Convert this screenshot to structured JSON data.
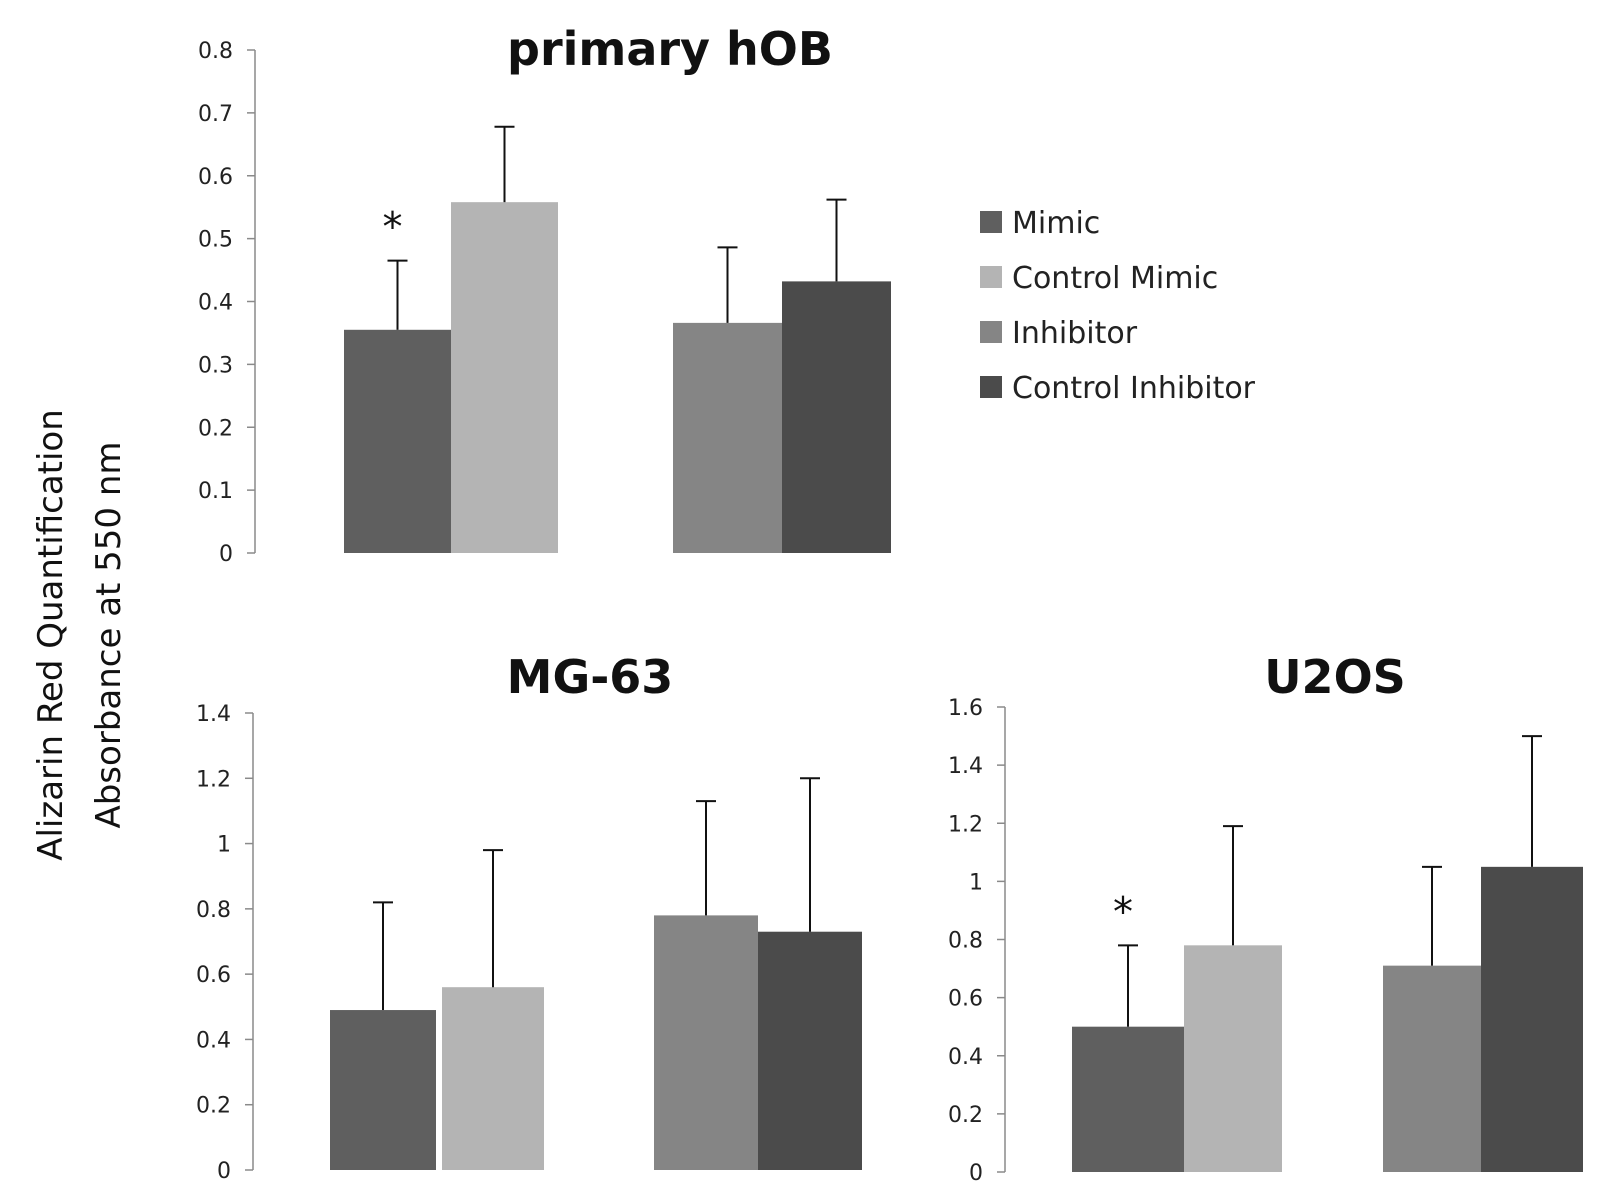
{
  "ylabel_line1": "Alizarin Red Quantification",
  "ylabel_line2": "Absorbance at 550 nm",
  "colors": {
    "Mimic": "#5f5f5f",
    "Control Mimic": "#b4b4b4",
    "Inhibitor": "#858585",
    "Control Inhibitor": "#4b4b4b"
  },
  "legend": [
    "Mimic",
    "Control Mimic",
    "Inhibitor",
    "Control Inhibitor"
  ],
  "chart_data": [
    {
      "type": "bar",
      "title": "primary hOB",
      "ylim": [
        0,
        0.8
      ],
      "yticks": [
        "0",
        "0.1",
        "0.2",
        "0.3",
        "0.4",
        "0.5",
        "0.6",
        "0.7",
        "0.8"
      ],
      "series": [
        {
          "name": "Mimic",
          "value": 0.355,
          "error": 0.11
        },
        {
          "name": "Control Mimic",
          "value": 0.558,
          "error": 0.12
        },
        {
          "name": "Inhibitor",
          "value": 0.366,
          "error": 0.12
        },
        {
          "name": "Control Inhibitor",
          "value": 0.432,
          "error": 0.13
        }
      ],
      "annotations": [
        {
          "series": "Mimic",
          "text": "*"
        }
      ]
    },
    {
      "type": "bar",
      "title": "MG-63",
      "ylim": [
        0,
        1.4
      ],
      "yticks": [
        "0",
        "0.2",
        "0.4",
        "0.6",
        "0.8",
        "1",
        "1.2",
        "1.4"
      ],
      "series": [
        {
          "name": "Mimic",
          "value": 0.49,
          "error": 0.33
        },
        {
          "name": "Control Mimic",
          "value": 0.56,
          "error": 0.42
        },
        {
          "name": "Inhibitor",
          "value": 0.78,
          "error": 0.35
        },
        {
          "name": "Control Inhibitor",
          "value": 0.73,
          "error": 0.47
        }
      ],
      "annotations": []
    },
    {
      "type": "bar",
      "title": "U2OS",
      "ylim": [
        0,
        1.6
      ],
      "yticks": [
        "0",
        "0.2",
        "0.4",
        "0.6",
        "0.8",
        "1",
        "1.2",
        "1.4",
        "1.6"
      ],
      "series": [
        {
          "name": "Mimic",
          "value": 0.5,
          "error": 0.28
        },
        {
          "name": "Control Mimic",
          "value": 0.78,
          "error": 0.41
        },
        {
          "name": "Inhibitor",
          "value": 0.71,
          "error": 0.34
        },
        {
          "name": "Control Inhibitor",
          "value": 1.05,
          "error": 0.45
        }
      ],
      "annotations": [
        {
          "series": "Mimic",
          "text": "*"
        }
      ]
    }
  ]
}
